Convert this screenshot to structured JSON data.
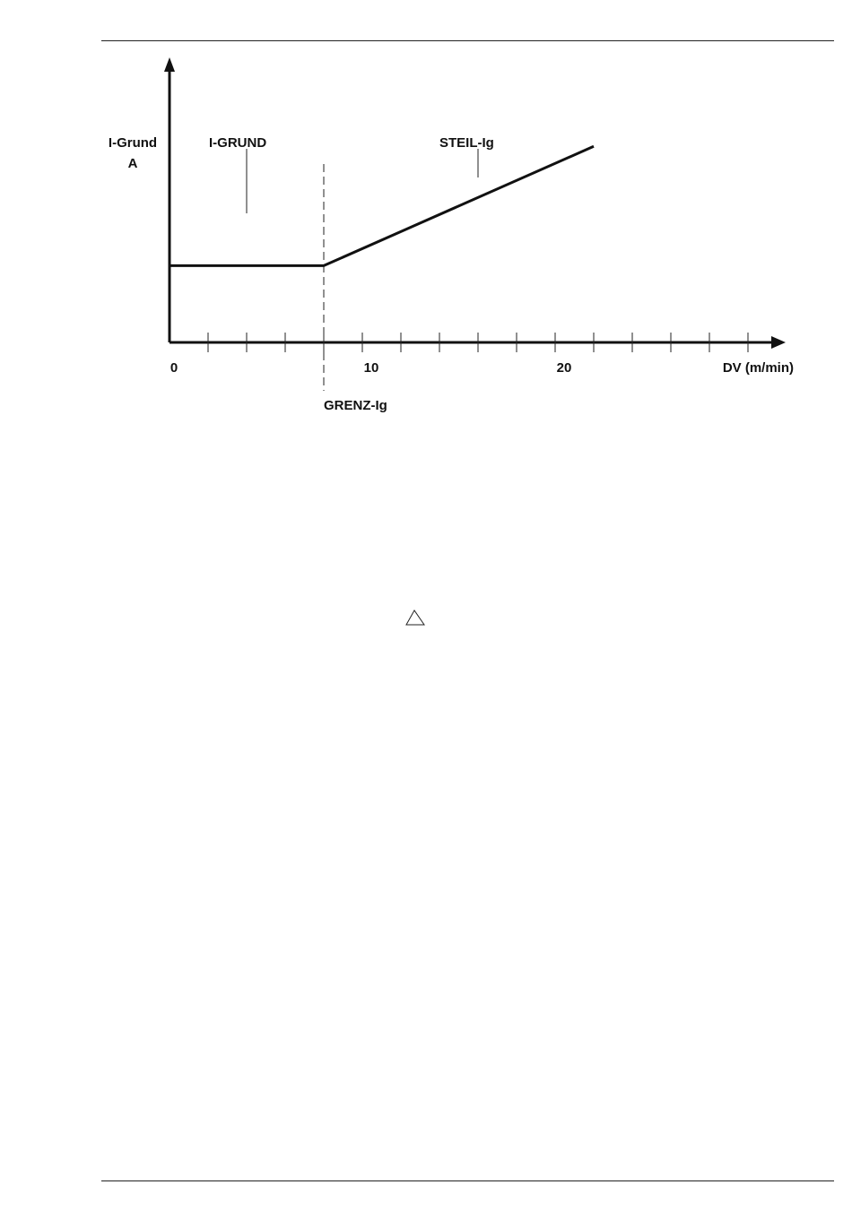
{
  "chart_data": {
    "type": "line",
    "xlabel": "DV (m/min)",
    "ylabel_lines": [
      "I-Grund",
      "A"
    ],
    "x_tick_labels": [
      "0",
      "10",
      "20"
    ],
    "x_ticks_major": [
      0,
      10,
      20
    ],
    "x_minor_tick_step": 2,
    "xlim": [
      0,
      32
    ],
    "ylim": [
      0,
      1
    ],
    "grid": false,
    "series": [
      {
        "points": [
          [
            0,
            0.27
          ],
          [
            8,
            0.27
          ],
          [
            22,
            0.69
          ]
        ],
        "color": "#111111"
      }
    ],
    "threshold_x": 8,
    "annotations": {
      "region_flat": "I-GRUND",
      "region_slope": "STEIL-Ig",
      "threshold": "GRENZ-Ig"
    }
  },
  "symbols": {
    "warning": "triangle-outline-icon"
  }
}
